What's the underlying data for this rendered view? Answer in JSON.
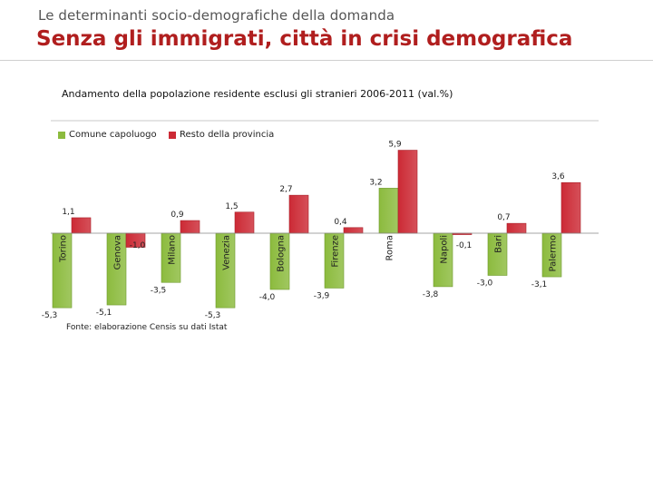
{
  "header": {
    "kicker": "Le determinanti socio-demografiche della domanda",
    "title": "Senza gli immigrati, città in crisi demografica"
  },
  "colors": {
    "title": "#b01e1e",
    "capoluogo": "#8cbb3e",
    "provincia": "#cc2a35"
  },
  "chart_data": {
    "type": "bar",
    "title": "Andamento della popolazione residente esclusi gli stranieri 2006-2011 (val.%)",
    "categories": [
      "Torino",
      "Genova",
      "Milano",
      "Venezia",
      "Bologna",
      "Firenze",
      "Roma",
      "Napoli",
      "Bari",
      "Palermo"
    ],
    "series": [
      {
        "name": "Comune capoluogo",
        "values": [
          -5.3,
          -5.1,
          -3.5,
          -5.3,
          -4.0,
          -3.9,
          3.2,
          -3.8,
          -3.0,
          -3.1
        ],
        "labels": [
          "-5,3",
          "-5,1",
          "-3,5",
          "-5,3",
          "-4,0",
          "-3,9",
          "3,2",
          "-3,8",
          "-3,0",
          "-3,1"
        ]
      },
      {
        "name": "Resto della provincia",
        "values": [
          1.1,
          -1.0,
          0.9,
          1.5,
          2.7,
          0.4,
          5.9,
          -0.1,
          0.7,
          3.6
        ],
        "labels": [
          "1,1",
          "-1,0",
          "0,9",
          "1,5",
          "2,7",
          "0,4",
          "5,9",
          "-0,1",
          "0,7",
          "3,6"
        ]
      }
    ],
    "legend_position": "top-left",
    "xlabel": "",
    "ylabel": "",
    "ylim": [
      -6,
      6
    ],
    "source": "Fonte: elaborazione Censis su dati Istat"
  }
}
